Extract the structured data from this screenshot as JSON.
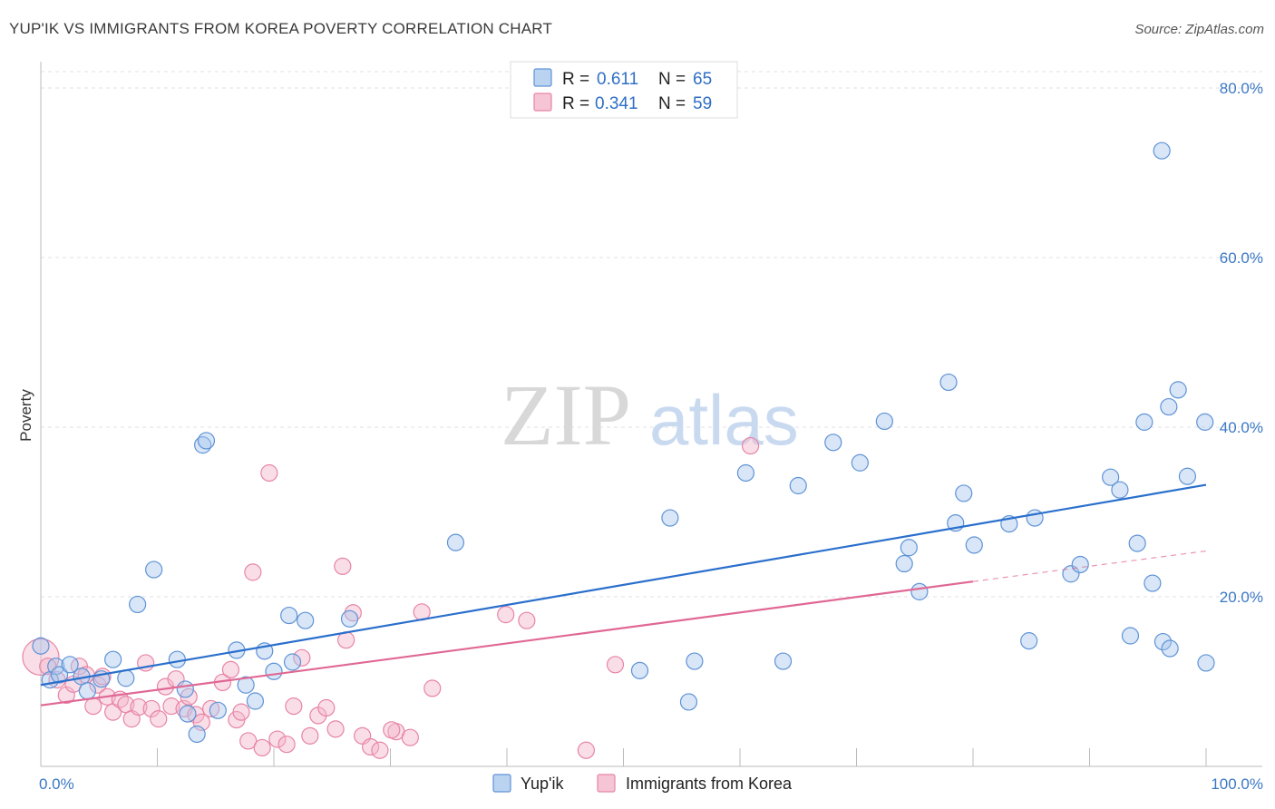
{
  "title": "YUP'IK VS IMMIGRANTS FROM KOREA POVERTY CORRELATION CHART",
  "source": "Source: ZipAtlas.com",
  "watermark": {
    "zip": "ZIP",
    "atlas": "atlas"
  },
  "legend_top": {
    "r_label": "R =",
    "n_label": "N =",
    "items": [
      {
        "r": "0.611",
        "n": "65"
      },
      {
        "r": "0.341",
        "n": "59"
      }
    ]
  },
  "colors": {
    "blue_fill": "#a9c8ee",
    "blue_stroke": "#5f93d6",
    "blue_line": "#2a6fcc",
    "pink_fill": "#f4b6ca",
    "pink_stroke": "#e784a6",
    "pink_line": "#e06894",
    "tick_text": "#3b78c4"
  },
  "chart_data": {
    "type": "scatter",
    "title": "YUP'IK VS IMMIGRANTS FROM KOREA POVERTY CORRELATION CHART",
    "xlabel": "",
    "ylabel": "Poverty",
    "xlim": [
      0,
      100
    ],
    "ylim": [
      0,
      80
    ],
    "x_tick_labels": [
      "0.0%",
      "100.0%"
    ],
    "y_ticks": [
      20,
      40,
      60,
      80
    ],
    "y_tick_labels": [
      "20.0%",
      "40.0%",
      "60.0%",
      "80.0%"
    ],
    "grid": true,
    "legend": "bottom-center",
    "series": [
      {
        "name": "Yup'ik",
        "r": 0.611,
        "n": 65,
        "trend": {
          "x0": 0,
          "y0": 9.6,
          "x1": 100,
          "y1": 33.2
        },
        "points": [
          [
            0,
            14.2
          ],
          [
            0.8,
            10.2
          ],
          [
            1.3,
            11.8
          ],
          [
            1.6,
            10.8
          ],
          [
            2.5,
            12.0
          ],
          [
            3.5,
            10.6
          ],
          [
            4,
            8.9
          ],
          [
            5.2,
            10.3
          ],
          [
            6.2,
            12.6
          ],
          [
            7.3,
            10.4
          ],
          [
            8.3,
            19.1
          ],
          [
            9.7,
            23.2
          ],
          [
            11.7,
            12.6
          ],
          [
            12.6,
            6.2
          ],
          [
            13.4,
            3.8
          ],
          [
            12.4,
            9.1
          ],
          [
            13.9,
            37.9
          ],
          [
            14.2,
            38.4
          ],
          [
            15.2,
            6.6
          ],
          [
            16.8,
            13.7
          ],
          [
            17.6,
            9.6
          ],
          [
            18.4,
            7.7
          ],
          [
            19.2,
            13.6
          ],
          [
            20,
            11.2
          ],
          [
            21.3,
            17.8
          ],
          [
            21.6,
            12.3
          ],
          [
            22.7,
            17.2
          ],
          [
            26.5,
            17.4
          ],
          [
            35.6,
            26.4
          ],
          [
            51.4,
            11.3
          ],
          [
            54,
            29.3
          ],
          [
            55.6,
            7.6
          ],
          [
            56.1,
            12.4
          ],
          [
            60.5,
            34.6
          ],
          [
            63.7,
            12.4
          ],
          [
            65,
            33.1
          ],
          [
            68,
            38.2
          ],
          [
            70.3,
            35.8
          ],
          [
            72.4,
            40.7
          ],
          [
            74.1,
            23.9
          ],
          [
            74.5,
            25.8
          ],
          [
            75.4,
            20.6
          ],
          [
            77.9,
            45.3
          ],
          [
            78.5,
            28.7
          ],
          [
            79.2,
            32.2
          ],
          [
            80.1,
            26.1
          ],
          [
            83.1,
            28.6
          ],
          [
            84.8,
            14.8
          ],
          [
            85.3,
            29.3
          ],
          [
            88.4,
            22.7
          ],
          [
            89.2,
            23.8
          ],
          [
            91.8,
            34.1
          ],
          [
            92.6,
            32.6
          ],
          [
            93.5,
            15.4
          ],
          [
            94.7,
            40.6
          ],
          [
            96.3,
            14.7
          ],
          [
            96.8,
            42.4
          ],
          [
            96.2,
            72.6
          ],
          [
            97.6,
            44.4
          ],
          [
            98.4,
            34.2
          ],
          [
            99.9,
            40.6
          ],
          [
            100,
            12.2
          ],
          [
            95.4,
            21.6
          ],
          [
            96.9,
            13.9
          ],
          [
            94.1,
            26.3
          ]
        ]
      },
      {
        "name": "Immigrants from Korea",
        "r": 0.341,
        "n": 59,
        "trend": {
          "x0": 0,
          "y0": 7.2,
          "x1": 80,
          "y1": 21.8
        },
        "trend_dashed": {
          "x0": 80,
          "y0": 21.8,
          "x1": 100,
          "y1": 25.4
        },
        "points": [
          [
            0,
            12.9
          ],
          [
            0.6,
            11.8
          ],
          [
            1.4,
            10.2
          ],
          [
            2.2,
            8.4
          ],
          [
            2.8,
            9.7
          ],
          [
            3.3,
            11.8
          ],
          [
            3.9,
            10.8
          ],
          [
            4.5,
            7.1
          ],
          [
            4.9,
            9.6
          ],
          [
            5.3,
            10.6
          ],
          [
            5.7,
            8.2
          ],
          [
            6.2,
            6.4
          ],
          [
            6.8,
            7.9
          ],
          [
            7.3,
            7.3
          ],
          [
            7.8,
            5.6
          ],
          [
            8.4,
            7.0
          ],
          [
            9.0,
            12.2
          ],
          [
            9.5,
            6.8
          ],
          [
            10.1,
            5.6
          ],
          [
            10.7,
            9.4
          ],
          [
            11.2,
            7.1
          ],
          [
            11.6,
            10.3
          ],
          [
            12.3,
            6.8
          ],
          [
            12.7,
            8.2
          ],
          [
            13.3,
            6.1
          ],
          [
            13.8,
            5.2
          ],
          [
            14.6,
            6.8
          ],
          [
            15.6,
            9.9
          ],
          [
            16.3,
            11.4
          ],
          [
            16.8,
            5.5
          ],
          [
            17.2,
            6.4
          ],
          [
            17.8,
            3.0
          ],
          [
            18.2,
            22.9
          ],
          [
            19.0,
            2.2
          ],
          [
            19.6,
            34.6
          ],
          [
            20.3,
            3.2
          ],
          [
            21.1,
            2.6
          ],
          [
            21.7,
            7.1
          ],
          [
            22.4,
            12.8
          ],
          [
            23.1,
            3.6
          ],
          [
            23.8,
            6.0
          ],
          [
            24.5,
            6.9
          ],
          [
            25.3,
            4.4
          ],
          [
            25.9,
            23.6
          ],
          [
            26.8,
            18.1
          ],
          [
            27.6,
            3.6
          ],
          [
            28.3,
            2.3
          ],
          [
            29.1,
            1.9
          ],
          [
            30.5,
            4.1
          ],
          [
            31.7,
            3.4
          ],
          [
            32.7,
            18.2
          ],
          [
            26.2,
            14.9
          ],
          [
            39.9,
            17.9
          ],
          [
            41.7,
            17.2
          ],
          [
            49.3,
            12.0
          ],
          [
            60.9,
            37.8
          ],
          [
            46.8,
            1.9
          ],
          [
            30.1,
            4.3
          ],
          [
            33.6,
            9.2
          ]
        ]
      }
    ]
  },
  "bottom_legend": {
    "items": [
      {
        "label": "Yup'ik"
      },
      {
        "label": "Immigrants from Korea"
      }
    ]
  }
}
